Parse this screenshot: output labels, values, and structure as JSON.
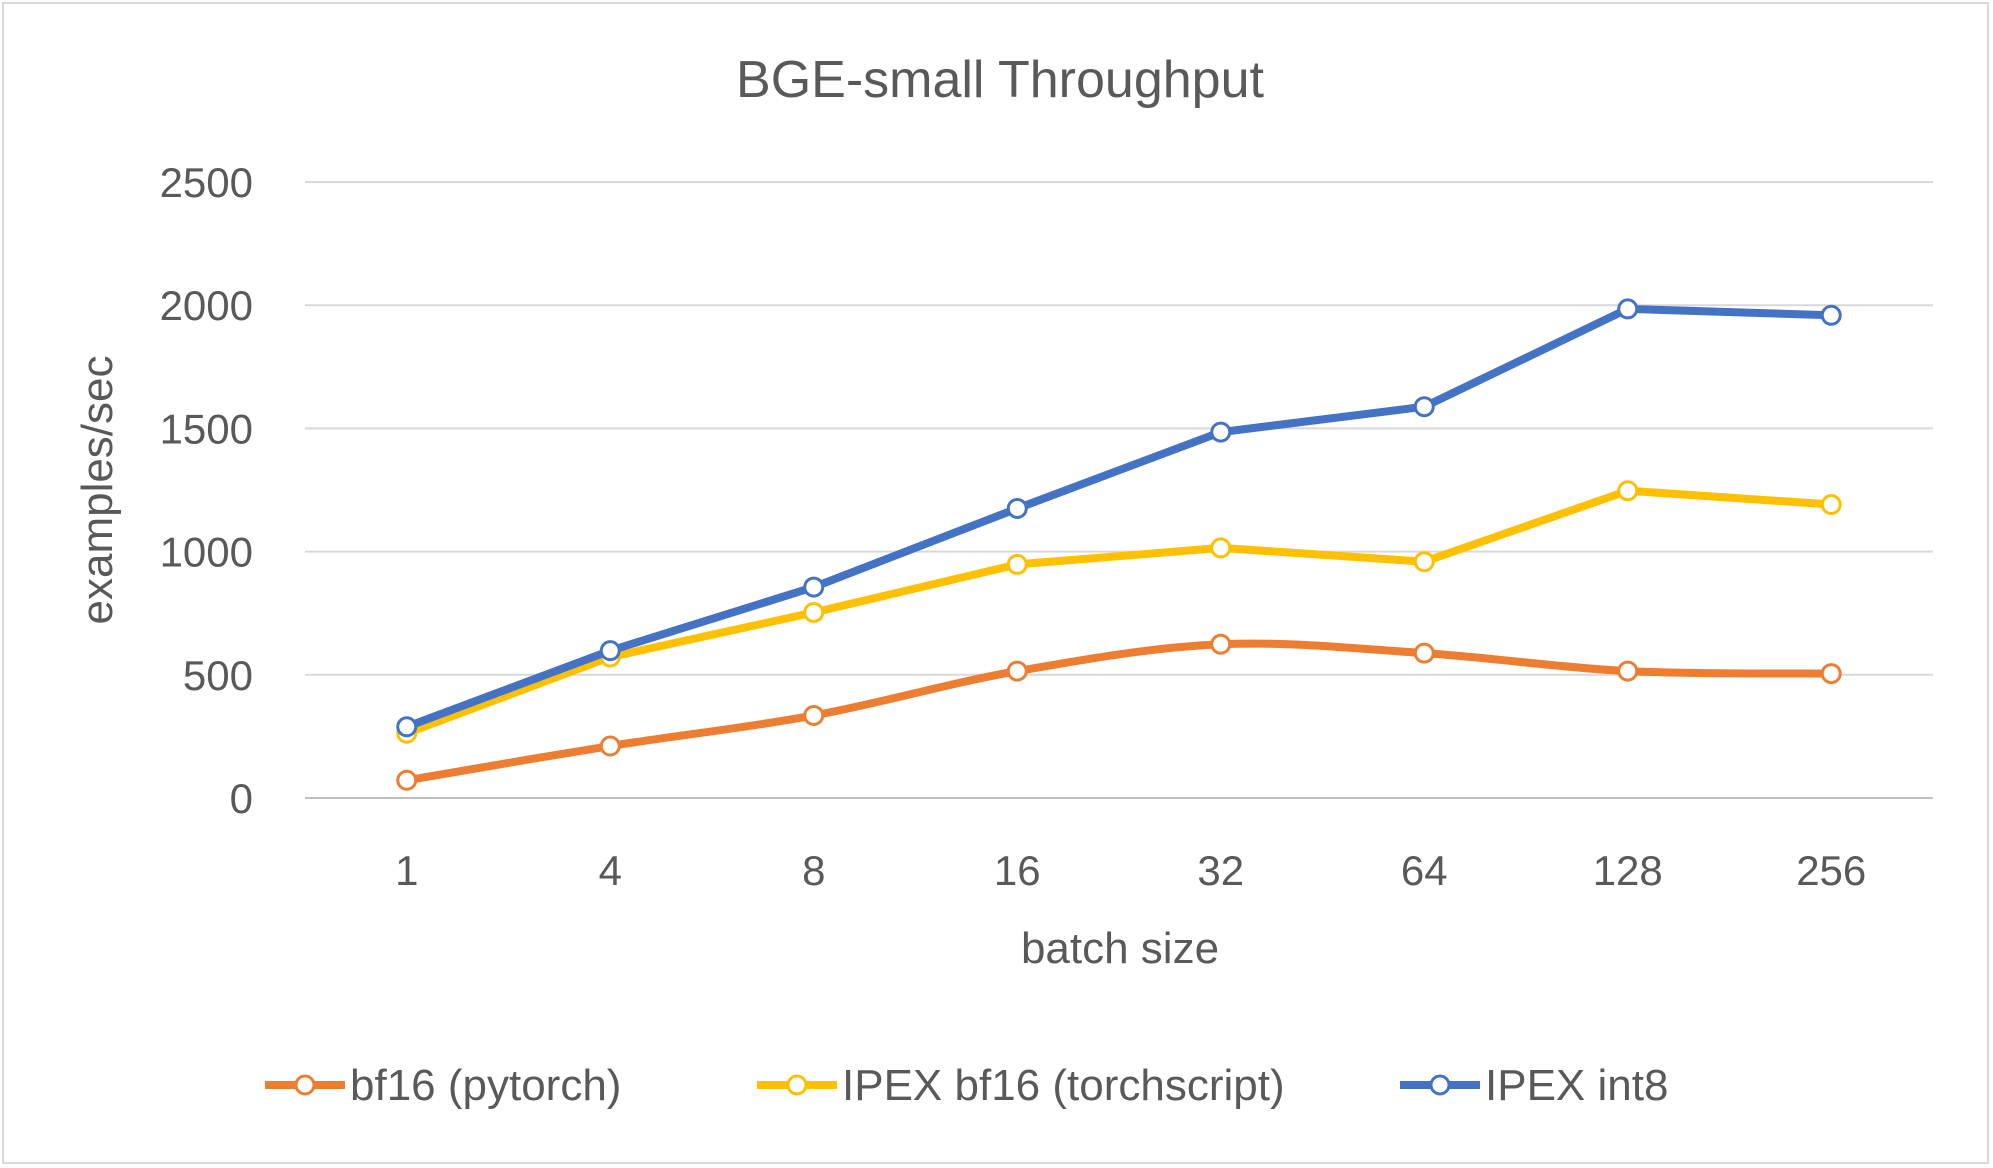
{
  "chart_data": {
    "type": "line",
    "title": "BGE-small Throughput",
    "xlabel": "batch size",
    "ylabel": "examples/sec",
    "categories": [
      "1",
      "4",
      "8",
      "16",
      "32",
      "64",
      "128",
      "256"
    ],
    "ylim": [
      0,
      2500
    ],
    "yticks": [
      0,
      500,
      1000,
      1500,
      2000,
      2500
    ],
    "grid": true,
    "legend": "bottom",
    "series": [
      {
        "name": "bf16 (pytorch)",
        "color": "#ED7D31",
        "smooth": true,
        "values": [
          72,
          211,
          335,
          515,
          624,
          588,
          515,
          505
        ]
      },
      {
        "name": "IPEX bf16 (torchscript)",
        "color": "#FFC000",
        "smooth": false,
        "values": [
          263,
          572,
          753,
          948,
          1015,
          959,
          1247,
          1191
        ]
      },
      {
        "name": "IPEX int8",
        "color": "#4472C4",
        "smooth": false,
        "values": [
          289,
          598,
          856,
          1175,
          1485,
          1588,
          1985,
          1959
        ]
      }
    ]
  }
}
